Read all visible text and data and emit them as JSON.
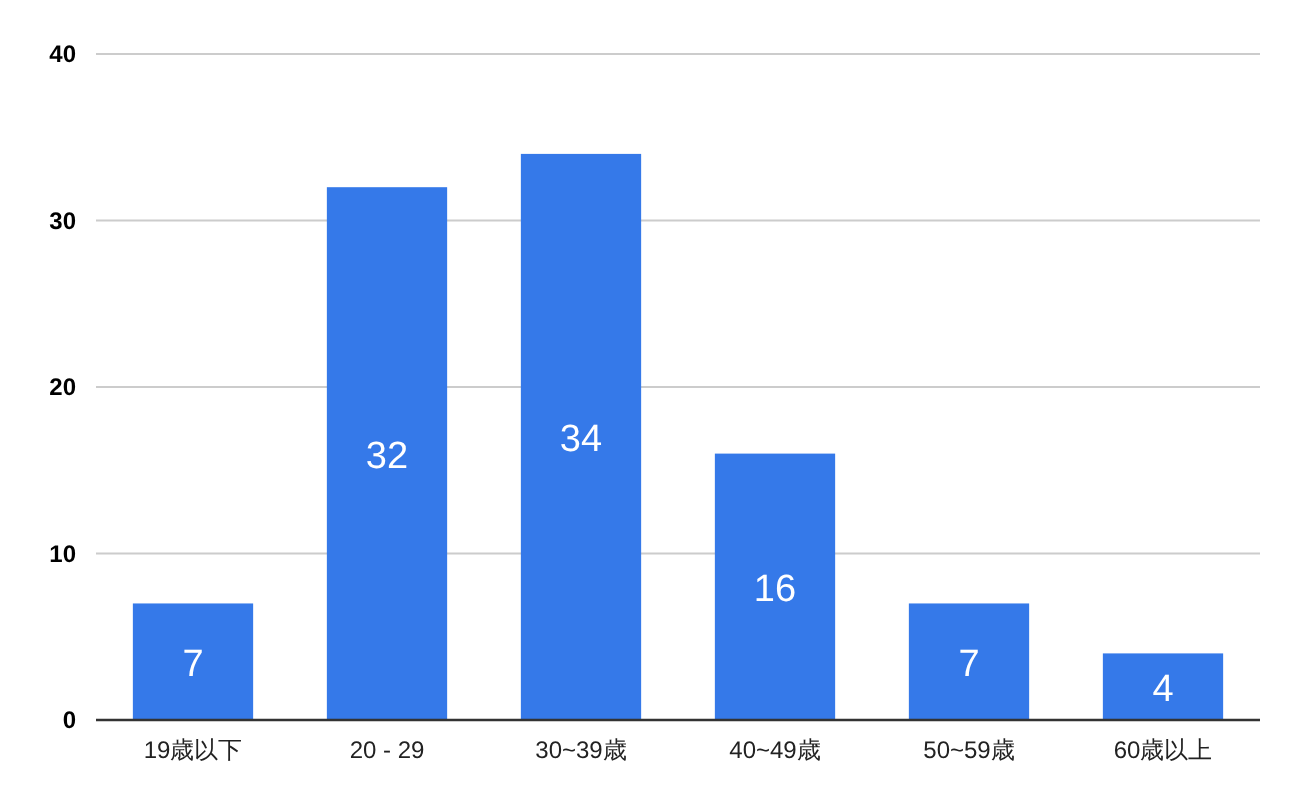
{
  "chart_data": {
    "type": "bar",
    "categories": [
      "19歳以下",
      "20 - 29",
      "30~39歳",
      "40~49歳",
      "50~59歳",
      "60歳以上"
    ],
    "values": [
      7,
      32,
      34,
      16,
      7,
      4
    ],
    "color": "#3579e9",
    "ylim": [
      0,
      40
    ],
    "yticks": [
      0,
      10,
      20,
      30,
      40
    ],
    "grid": "y",
    "data_labels": true
  }
}
